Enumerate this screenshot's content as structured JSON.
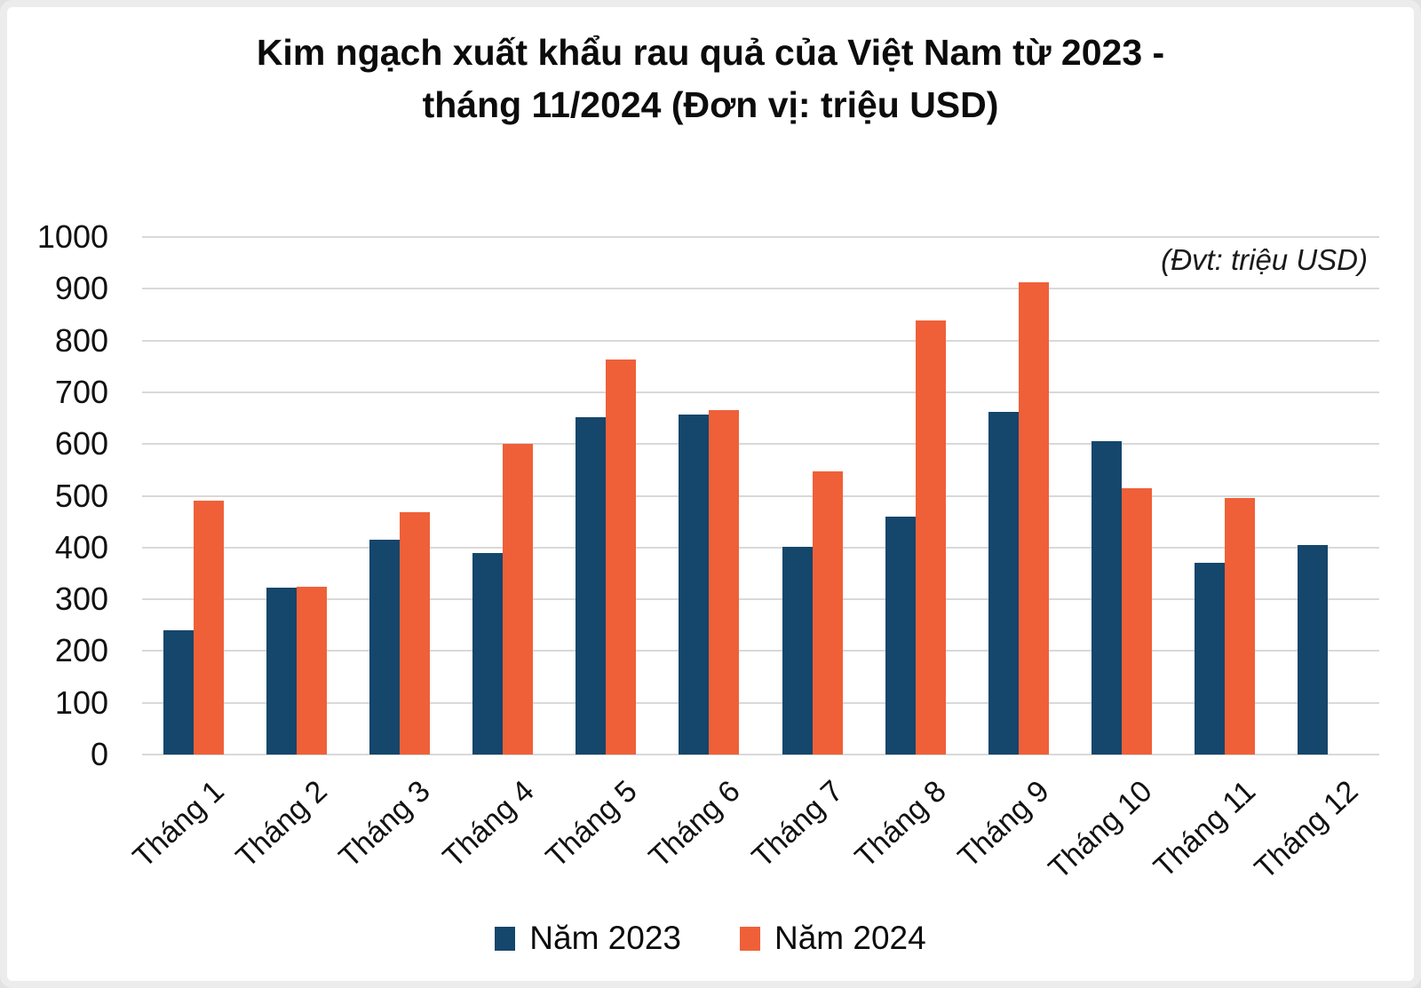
{
  "title_lines": [
    "Kim ngạch xuất khẩu rau quả của Việt Nam từ 2023 -",
    "tháng 11/2024 (Đơn vị: triệu USD)"
  ],
  "unit_note": "(Đvt: triệu USD)",
  "colors": {
    "series_2023": "#15466b",
    "series_2024": "#ef6038",
    "gridline": "#d9d9d9",
    "text": "#111111"
  },
  "chart_data": {
    "type": "bar",
    "title": "Kim ngạch xuất khẩu rau quả của Việt Nam từ 2023 - tháng 11/2024 (Đơn vị: triệu USD)",
    "xlabel": "",
    "ylabel": "triệu USD",
    "ylim": [
      0,
      1000
    ],
    "yticks": [
      0,
      100,
      200,
      300,
      400,
      500,
      600,
      700,
      800,
      900,
      1000
    ],
    "grid": true,
    "legend_position": "bottom",
    "categories": [
      "Tháng 1",
      "Tháng 2",
      "Tháng 3",
      "Tháng 4",
      "Tháng 5",
      "Tháng 6",
      "Tháng 7",
      "Tháng 8",
      "Tháng 9",
      "Tháng 10",
      "Tháng 11",
      "Tháng 12"
    ],
    "series": [
      {
        "name": "Năm 2023",
        "color": "#15466b",
        "values": [
          240,
          322,
          415,
          390,
          652,
          657,
          402,
          460,
          662,
          605,
          370,
          405
        ]
      },
      {
        "name": "Năm 2024",
        "color": "#ef6038",
        "values": [
          490,
          325,
          468,
          600,
          763,
          666,
          548,
          838,
          912,
          515,
          495,
          null
        ]
      }
    ]
  }
}
